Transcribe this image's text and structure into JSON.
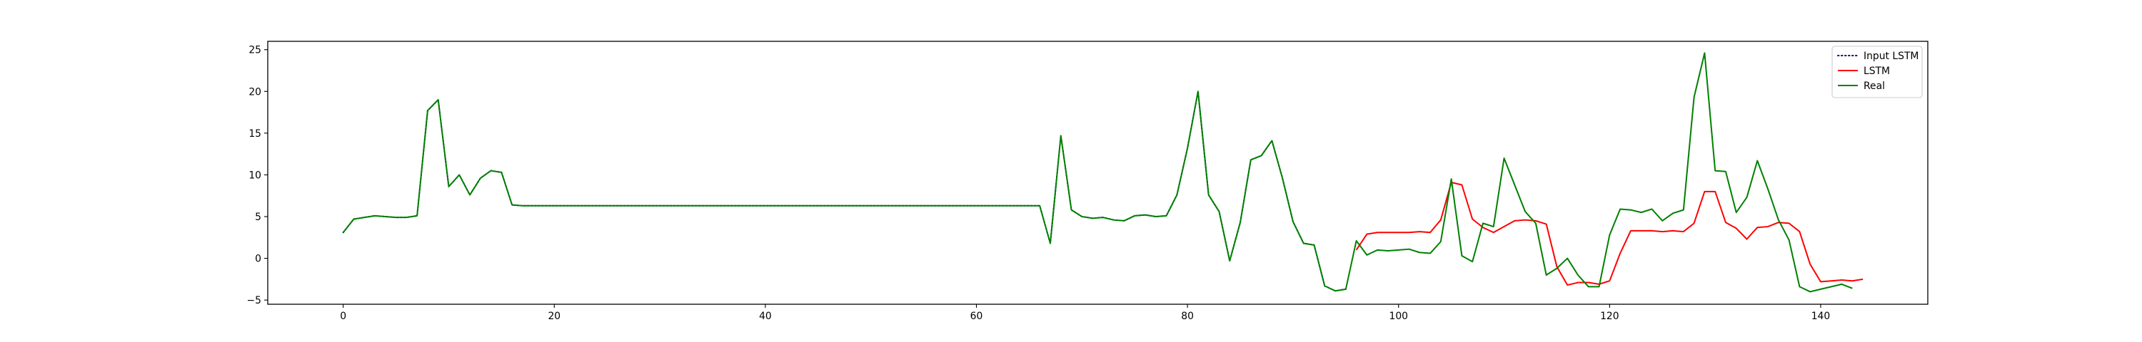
{
  "chart_data": {
    "type": "line",
    "title": "",
    "xlabel": "",
    "ylabel": "",
    "xlim": [
      -7.15,
      150.15
    ],
    "ylim": [
      -5.5,
      26.0
    ],
    "xticks": [
      0,
      20,
      40,
      60,
      80,
      100,
      120,
      140
    ],
    "yticks": [
      -5,
      0,
      5,
      10,
      15,
      20,
      25
    ],
    "grid": false,
    "legend_position": "top-right",
    "legend": [
      {
        "key": "input",
        "label": "Input LSTM",
        "color": "#000080",
        "style": "dotted"
      },
      {
        "key": "lstm",
        "label": "LSTM",
        "color": "#ff0000",
        "style": "solid"
      },
      {
        "key": "real",
        "label": "Real",
        "color": "#008000",
        "style": "solid"
      }
    ],
    "series": [
      {
        "key": "input",
        "color": "#000080",
        "style": "dotted",
        "x_start": 0,
        "values": [
          3.1,
          4.7,
          4.9,
          5.1,
          5.0,
          4.9,
          4.9,
          5.1,
          17.7,
          19.0,
          8.6,
          10.0,
          7.6,
          9.6,
          10.5,
          10.3,
          6.4,
          6.3,
          6.3,
          6.3,
          6.3,
          6.3,
          6.3,
          6.3,
          6.3,
          6.3,
          6.3,
          6.3,
          6.3,
          6.3,
          6.3,
          6.3,
          6.3,
          6.3,
          6.3,
          6.3,
          6.3,
          6.3,
          6.3,
          6.3,
          6.3,
          6.3,
          6.3,
          6.3,
          6.3,
          6.3,
          6.3,
          6.3,
          6.3,
          6.3,
          6.3,
          6.3,
          6.3,
          6.3,
          6.3,
          6.3,
          6.3,
          6.3,
          6.3,
          6.3,
          6.3,
          6.3,
          6.3,
          6.3,
          6.3,
          6.3,
          6.3,
          1.8,
          14.7,
          5.8,
          5.0,
          4.8,
          4.9,
          4.6,
          4.5,
          5.1,
          5.2,
          5.0,
          5.1,
          7.6,
          13.2,
          20.0,
          7.6,
          5.6,
          -0.3,
          4.3,
          11.8,
          12.3,
          14.1,
          9.6,
          4.4,
          1.8,
          1.6,
          -3.3,
          -3.9,
          -3.7
        ]
      },
      {
        "key": "lstm",
        "color": "#ff0000",
        "style": "solid",
        "x_start": 96,
        "values": [
          1.0,
          2.9,
          3.1,
          3.1,
          3.1,
          3.1,
          3.2,
          3.1,
          4.6,
          9.1,
          8.8,
          4.7,
          3.7,
          3.1,
          3.8,
          4.5,
          4.6,
          4.5,
          4.1,
          -1.0,
          -3.2,
          -2.9,
          -2.9,
          -3.1,
          -2.7,
          0.6,
          3.3,
          3.3,
          3.3,
          3.2,
          3.3,
          3.2,
          4.2,
          8.0,
          8.0,
          4.3,
          3.6,
          2.3,
          3.7,
          3.8,
          4.3,
          4.2,
          3.2,
          -0.7,
          -2.8,
          -2.7,
          -2.6,
          -2.7,
          -2.5
        ]
      },
      {
        "key": "real",
        "color": "#008000",
        "style": "solid",
        "x_start": 0,
        "values": [
          3.1,
          4.7,
          4.9,
          5.1,
          5.0,
          4.9,
          4.9,
          5.1,
          17.7,
          19.0,
          8.6,
          10.0,
          7.6,
          9.6,
          10.5,
          10.3,
          6.4,
          6.3,
          6.3,
          6.3,
          6.3,
          6.3,
          6.3,
          6.3,
          6.3,
          6.3,
          6.3,
          6.3,
          6.3,
          6.3,
          6.3,
          6.3,
          6.3,
          6.3,
          6.3,
          6.3,
          6.3,
          6.3,
          6.3,
          6.3,
          6.3,
          6.3,
          6.3,
          6.3,
          6.3,
          6.3,
          6.3,
          6.3,
          6.3,
          6.3,
          6.3,
          6.3,
          6.3,
          6.3,
          6.3,
          6.3,
          6.3,
          6.3,
          6.3,
          6.3,
          6.3,
          6.3,
          6.3,
          6.3,
          6.3,
          6.3,
          6.3,
          1.8,
          14.7,
          5.8,
          5.0,
          4.8,
          4.9,
          4.6,
          4.5,
          5.1,
          5.2,
          5.0,
          5.1,
          7.6,
          13.2,
          20.0,
          7.6,
          5.6,
          -0.3,
          4.3,
          11.8,
          12.3,
          14.1,
          9.6,
          4.4,
          1.8,
          1.6,
          -3.3,
          -3.9,
          -3.7,
          2.1,
          0.4,
          1.0,
          0.9,
          1.0,
          1.1,
          0.7,
          0.6,
          2.0,
          9.5,
          0.3,
          -0.4,
          4.2,
          3.8,
          12.0,
          8.8,
          5.6,
          4.2,
          -2.0,
          -1.2,
          0.0,
          -2.0,
          -3.4,
          -3.4,
          2.8,
          5.9,
          5.8,
          5.5,
          5.9,
          4.5,
          5.4,
          5.8,
          19.3,
          24.6,
          10.5,
          10.4,
          5.5,
          7.3,
          11.7,
          8.3,
          4.6,
          2.2,
          -3.4,
          -4.0,
          -3.7,
          -3.4,
          -3.1,
          -3.6
        ]
      }
    ]
  }
}
